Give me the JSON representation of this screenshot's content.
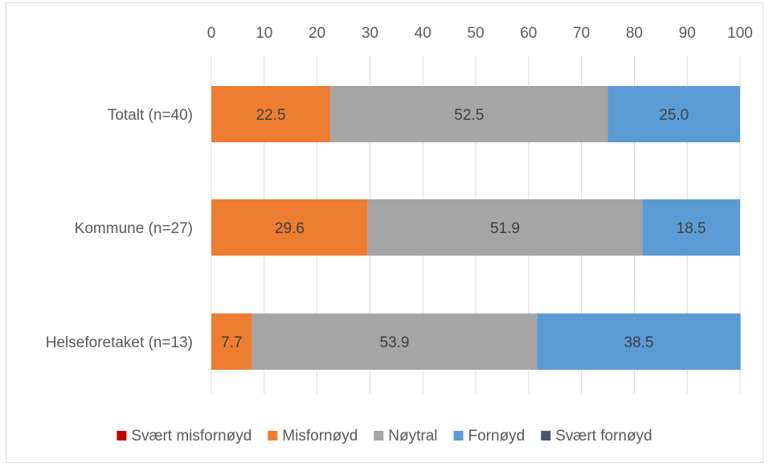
{
  "chart_data": {
    "type": "bar",
    "orientation": "horizontal",
    "stacked": true,
    "title": "",
    "xlabel": "",
    "ylabel": "",
    "xlim": [
      0,
      100
    ],
    "x_ticks": [
      "0",
      "10",
      "20",
      "30",
      "40",
      "50",
      "60",
      "70",
      "80",
      "90",
      "100"
    ],
    "grid": true,
    "legend_position": "bottom",
    "categories": [
      "Totalt (n=40)",
      "Kommune (n=27)",
      "Helseforetaket (n=13)"
    ],
    "series": [
      {
        "name": "Svært misfornøyd",
        "color": "#c00000",
        "values": [
          0,
          0,
          0
        ]
      },
      {
        "name": "Misfornøyd",
        "color": "#ed7d31",
        "values": [
          22.5,
          29.6,
          7.7
        ]
      },
      {
        "name": "Nøytral",
        "color": "#a5a5a5",
        "values": [
          52.5,
          51.9,
          53.9
        ]
      },
      {
        "name": "Fornøyd",
        "color": "#5b9bd5",
        "values": [
          25.0,
          18.5,
          38.5
        ]
      },
      {
        "name": "Svært fornøyd",
        "color": "#44546a",
        "values": [
          0,
          0,
          0
        ]
      }
    ]
  }
}
